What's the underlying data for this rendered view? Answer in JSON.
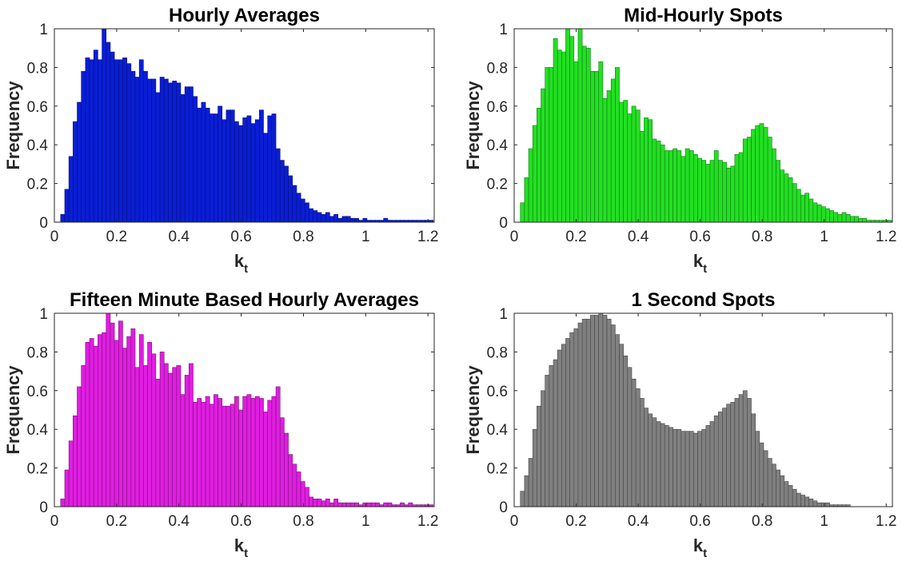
{
  "figure": {
    "panels": [
      {
        "title": "Hourly Averages",
        "xlabel_main": "k",
        "xlabel_sub": "t",
        "ylabel": "Frequency",
        "color": "#0a1ed6"
      },
      {
        "title": "Mid-Hourly Spots",
        "xlabel_main": "k",
        "xlabel_sub": "t",
        "ylabel": "Frequency",
        "color": "#22e022"
      },
      {
        "title": "Fifteen Minute Based Hourly Averages",
        "xlabel_main": "k",
        "xlabel_sub": "t",
        "ylabel": "Frequency",
        "color": "#e01ee0"
      },
      {
        "title": "1 Second Spots",
        "xlabel_main": "k",
        "xlabel_sub": "t",
        "ylabel": "Frequency",
        "color": "#808080"
      }
    ]
  },
  "chart_data": [
    {
      "type": "bar",
      "title": "Hourly Averages",
      "xlabel": "k_t",
      "ylabel": "Frequency",
      "xlim": [
        0,
        1.22
      ],
      "ylim": [
        0,
        1
      ],
      "xticks": [
        "0",
        "0.2",
        "0.4",
        "0.6",
        "0.8",
        "1",
        "1.2"
      ],
      "yticks": [
        "0",
        "0.2",
        "0.4",
        "0.6",
        "0.8",
        "1"
      ],
      "bin_start": 0.02,
      "bin_width": 0.0133,
      "color": "#0a1ed6",
      "values": [
        0.04,
        0.17,
        0.34,
        0.52,
        0.62,
        0.78,
        0.85,
        0.84,
        0.89,
        0.84,
        1.0,
        0.93,
        0.88,
        0.84,
        0.84,
        0.85,
        0.82,
        0.78,
        0.75,
        0.84,
        0.78,
        0.74,
        0.74,
        0.67,
        0.75,
        0.74,
        0.72,
        0.73,
        0.72,
        0.66,
        0.7,
        0.7,
        0.65,
        0.59,
        0.62,
        0.59,
        0.56,
        0.56,
        0.6,
        0.53,
        0.58,
        0.58,
        0.52,
        0.5,
        0.54,
        0.55,
        0.51,
        0.53,
        0.58,
        0.46,
        0.55,
        0.56,
        0.38,
        0.32,
        0.29,
        0.24,
        0.19,
        0.15,
        0.12,
        0.1,
        0.07,
        0.06,
        0.05,
        0.04,
        0.05,
        0.03,
        0.04,
        0.02,
        0.03,
        0.03,
        0.02,
        0.02,
        0.01,
        0.02,
        0.01,
        0.01,
        0.01,
        0.01,
        0.02,
        0.01,
        0.01,
        0.01,
        0.01,
        0.01,
        0.01,
        0.01,
        0.01,
        0.01,
        0.01,
        0.01
      ],
      "grid": false
    },
    {
      "type": "bar",
      "title": "Mid-Hourly Spots",
      "xlabel": "k_t",
      "ylabel": "Frequency",
      "xlim": [
        0,
        1.22
      ],
      "ylim": [
        0,
        1
      ],
      "xticks": [
        "0",
        "0.2",
        "0.4",
        "0.6",
        "0.8",
        "1",
        "1.2"
      ],
      "yticks": [
        "0",
        "0.2",
        "0.4",
        "0.6",
        "0.8",
        "1"
      ],
      "bin_start": 0.02,
      "bin_width": 0.0133,
      "color": "#22e022",
      "values": [
        0.1,
        0.23,
        0.38,
        0.5,
        0.59,
        0.69,
        0.8,
        0.8,
        0.95,
        0.89,
        0.88,
        1.0,
        0.96,
        0.83,
        1.0,
        0.91,
        0.9,
        0.78,
        0.78,
        0.83,
        0.64,
        0.68,
        0.74,
        0.8,
        0.62,
        0.63,
        0.56,
        0.6,
        0.58,
        0.47,
        0.54,
        0.53,
        0.43,
        0.42,
        0.4,
        0.37,
        0.37,
        0.38,
        0.37,
        0.34,
        0.38,
        0.37,
        0.35,
        0.33,
        0.32,
        0.3,
        0.32,
        0.37,
        0.32,
        0.31,
        0.28,
        0.29,
        0.35,
        0.36,
        0.43,
        0.44,
        0.48,
        0.5,
        0.51,
        0.49,
        0.44,
        0.38,
        0.32,
        0.27,
        0.25,
        0.23,
        0.2,
        0.17,
        0.14,
        0.15,
        0.12,
        0.1,
        0.09,
        0.08,
        0.07,
        0.06,
        0.05,
        0.04,
        0.05,
        0.04,
        0.03,
        0.03,
        0.02,
        0.02,
        0.01,
        0.01,
        0.01,
        0.01,
        0.01,
        0.01
      ],
      "grid": false
    },
    {
      "type": "bar",
      "title": "Fifteen Minute Based Hourly Averages",
      "xlabel": "k_t",
      "ylabel": "Frequency",
      "xlim": [
        0,
        1.22
      ],
      "ylim": [
        0,
        1
      ],
      "xticks": [
        "0",
        "0.2",
        "0.4",
        "0.6",
        "0.8",
        "1",
        "1.2"
      ],
      "yticks": [
        "0",
        "0.2",
        "0.4",
        "0.6",
        "0.8",
        "1"
      ],
      "bin_start": 0.02,
      "bin_width": 0.0133,
      "color": "#e01ee0",
      "values": [
        0.04,
        0.19,
        0.34,
        0.47,
        0.62,
        0.73,
        0.85,
        0.87,
        0.83,
        0.89,
        0.9,
        1.0,
        0.95,
        0.86,
        0.96,
        0.82,
        0.88,
        0.92,
        0.72,
        0.89,
        0.73,
        0.85,
        0.79,
        0.66,
        0.8,
        0.74,
        0.69,
        0.72,
        0.73,
        0.58,
        0.68,
        0.74,
        0.54,
        0.56,
        0.54,
        0.57,
        0.53,
        0.58,
        0.56,
        0.52,
        0.52,
        0.53,
        0.57,
        0.5,
        0.57,
        0.58,
        0.56,
        0.57,
        0.56,
        0.49,
        0.55,
        0.57,
        0.62,
        0.46,
        0.38,
        0.27,
        0.22,
        0.18,
        0.13,
        0.1,
        0.05,
        0.04,
        0.04,
        0.03,
        0.04,
        0.02,
        0.04,
        0.02,
        0.02,
        0.02,
        0.02,
        0.02,
        0.01,
        0.02,
        0.02,
        0.02,
        0.02,
        0.01,
        0.02,
        0.02,
        0.01,
        0.01,
        0.02,
        0.01,
        0.02,
        0.01,
        0.01,
        0.01,
        0.01,
        0.01
      ],
      "grid": false
    },
    {
      "type": "bar",
      "title": "1 Second Spots",
      "xlabel": "k_t",
      "ylabel": "Frequency",
      "xlim": [
        0,
        1.22
      ],
      "ylim": [
        0,
        1
      ],
      "xticks": [
        "0",
        "0.2",
        "0.4",
        "0.6",
        "0.8",
        "1",
        "1.2"
      ],
      "yticks": [
        "0",
        "0.2",
        "0.4",
        "0.6",
        "0.8",
        "1"
      ],
      "bin_start": 0.02,
      "bin_width": 0.0133,
      "color": "#808080",
      "values": [
        0.08,
        0.16,
        0.25,
        0.4,
        0.52,
        0.6,
        0.68,
        0.73,
        0.76,
        0.81,
        0.84,
        0.87,
        0.9,
        0.92,
        0.95,
        0.97,
        0.97,
        0.99,
        0.99,
        1.0,
        0.99,
        0.97,
        0.94,
        0.89,
        0.84,
        0.78,
        0.72,
        0.66,
        0.61,
        0.56,
        0.51,
        0.48,
        0.46,
        0.44,
        0.43,
        0.42,
        0.41,
        0.4,
        0.4,
        0.39,
        0.39,
        0.39,
        0.38,
        0.39,
        0.4,
        0.42,
        0.44,
        0.47,
        0.49,
        0.51,
        0.53,
        0.54,
        0.56,
        0.58,
        0.6,
        0.56,
        0.48,
        0.39,
        0.33,
        0.29,
        0.25,
        0.22,
        0.19,
        0.16,
        0.13,
        0.11,
        0.09,
        0.07,
        0.06,
        0.05,
        0.04,
        0.03,
        0.02,
        0.02,
        0.02,
        0.01,
        0.01,
        0.01,
        0.01,
        0.01,
        0.0,
        0.0,
        0.0,
        0.0,
        0.0,
        0.0,
        0.0,
        0.0,
        0.0,
        0.0
      ],
      "grid": false
    }
  ]
}
